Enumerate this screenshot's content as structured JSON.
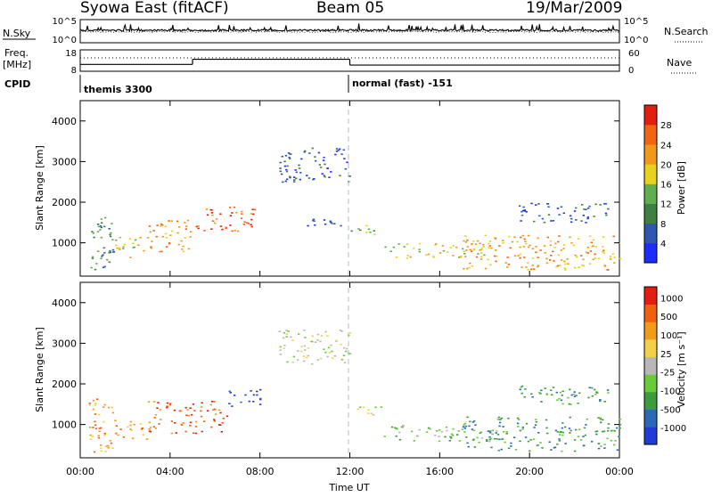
{
  "header": {
    "title": "Syowa East (fitACF)",
    "beam": "Beam 05",
    "date": "19/Mar/2009"
  },
  "sky_panel": {
    "left_label": "N.Sky",
    "right_label": "N.Search",
    "right_line_style": "dotted",
    "left_ticks": [
      "10^5",
      "10^0"
    ],
    "right_ticks": [
      "10^5",
      "10^0"
    ]
  },
  "freq_panel": {
    "left_label_line1": "Freq.",
    "left_label_line2": "[MHz]",
    "left_ticks": [
      "18",
      "8"
    ],
    "right_label": "Nave",
    "right_line_style": "dotted",
    "right_ticks": [
      "60",
      "0"
    ],
    "freq_steps": [
      {
        "from_hr": 0.0,
        "to_hr": 5.0,
        "mhz": 11.2
      },
      {
        "from_hr": 5.0,
        "to_hr": 12.0,
        "mhz": 13.6
      },
      {
        "from_hr": 12.0,
        "to_hr": 24.0,
        "mhz": 10.9
      }
    ]
  },
  "cpid": {
    "label": "CPID",
    "segments": [
      {
        "start_hr": 0,
        "name": "themis 3300"
      },
      {
        "start_hr": 12,
        "name": "normal (fast) -151"
      }
    ]
  },
  "time_axis": {
    "label": "Time UT",
    "range_hr": [
      0,
      24
    ],
    "ticks": [
      "00:00",
      "04:00",
      "08:00",
      "12:00",
      "16:00",
      "20:00",
      "00:00"
    ]
  },
  "chart_data": [
    {
      "type": "heatmap",
      "quantity": "power",
      "ylabel": "Slant Range [km]",
      "ylim": [
        180,
        4500
      ],
      "yticks": [
        "1000",
        "2000",
        "3000",
        "4000"
      ],
      "colorbar": {
        "label": "Power [dB]",
        "ticks": [
          "4",
          "8",
          "12",
          "16",
          "20",
          "24",
          "28"
        ],
        "colors": [
          "#1f2cff",
          "#2d57b0",
          "#3f7f3f",
          "#5fae4f",
          "#e8d21c",
          "#f0981a",
          "#f06414",
          "#e41e0e"
        ]
      },
      "echo_regions": [
        {
          "t": [
            0.3,
            1.5
          ],
          "r": [
            300,
            1650
          ],
          "level": 2
        },
        {
          "t": [
            1.5,
            3.0
          ],
          "r": [
            650,
            1150
          ],
          "level": 4
        },
        {
          "t": [
            3.0,
            5.0
          ],
          "r": [
            800,
            1600
          ],
          "level": 5
        },
        {
          "t": [
            5.0,
            7.8
          ],
          "r": [
            1300,
            1900
          ],
          "level": 6
        },
        {
          "t": [
            8.8,
            12.0
          ],
          "r": [
            2500,
            3350
          ],
          "level": 1
        },
        {
          "t": [
            10.0,
            12.0
          ],
          "r": [
            1350,
            1600
          ],
          "level": 1
        },
        {
          "t": [
            12.0,
            13.5
          ],
          "r": [
            1200,
            1450
          ],
          "level": 3
        },
        {
          "t": [
            13.5,
            18.5
          ],
          "r": [
            600,
            1000
          ],
          "level": 4
        },
        {
          "t": [
            17.0,
            24.0
          ],
          "r": [
            350,
            1200
          ],
          "level": 5
        },
        {
          "t": [
            19.5,
            23.5
          ],
          "r": [
            1500,
            2000
          ],
          "level": 1
        }
      ]
    },
    {
      "type": "heatmap",
      "quantity": "velocity",
      "ylabel": "Slant Range [km]",
      "ylim": [
        180,
        4500
      ],
      "yticks": [
        "1000",
        "2000",
        "3000",
        "4000"
      ],
      "colorbar": {
        "label": "Velocity [m s⁻¹]",
        "ticks": [
          "1000",
          "500",
          "100",
          "25",
          "-25",
          "-100",
          "-500",
          "-1000"
        ],
        "colors": [
          "#1f3cd8",
          "#2a68b8",
          "#3c9b3c",
          "#6acb3a",
          "#b8b8b8",
          "#f4d04a",
          "#f29a1a",
          "#f06010",
          "#e41e0e"
        ]
      },
      "echo_regions": [
        {
          "t": [
            0.3,
            1.5
          ],
          "r": [
            300,
            1650
          ],
          "level": 6
        },
        {
          "t": [
            1.5,
            3.0
          ],
          "r": [
            650,
            1150
          ],
          "level": 6
        },
        {
          "t": [
            3.0,
            6.5
          ],
          "r": [
            800,
            1600
          ],
          "level": 7
        },
        {
          "t": [
            6.5,
            8.0
          ],
          "r": [
            1450,
            1900
          ],
          "level": 0
        },
        {
          "t": [
            8.8,
            12.0
          ],
          "r": [
            2500,
            3350
          ],
          "level": 4
        },
        {
          "t": [
            12.0,
            13.5
          ],
          "r": [
            1200,
            1450
          ],
          "level": 4
        },
        {
          "t": [
            13.5,
            18.5
          ],
          "r": [
            600,
            1000
          ],
          "level": 3
        },
        {
          "t": [
            17.0,
            24.0
          ],
          "r": [
            350,
            1200
          ],
          "level": 2
        },
        {
          "t": [
            19.5,
            23.5
          ],
          "r": [
            1500,
            2000
          ],
          "level": 2
        }
      ]
    }
  ]
}
